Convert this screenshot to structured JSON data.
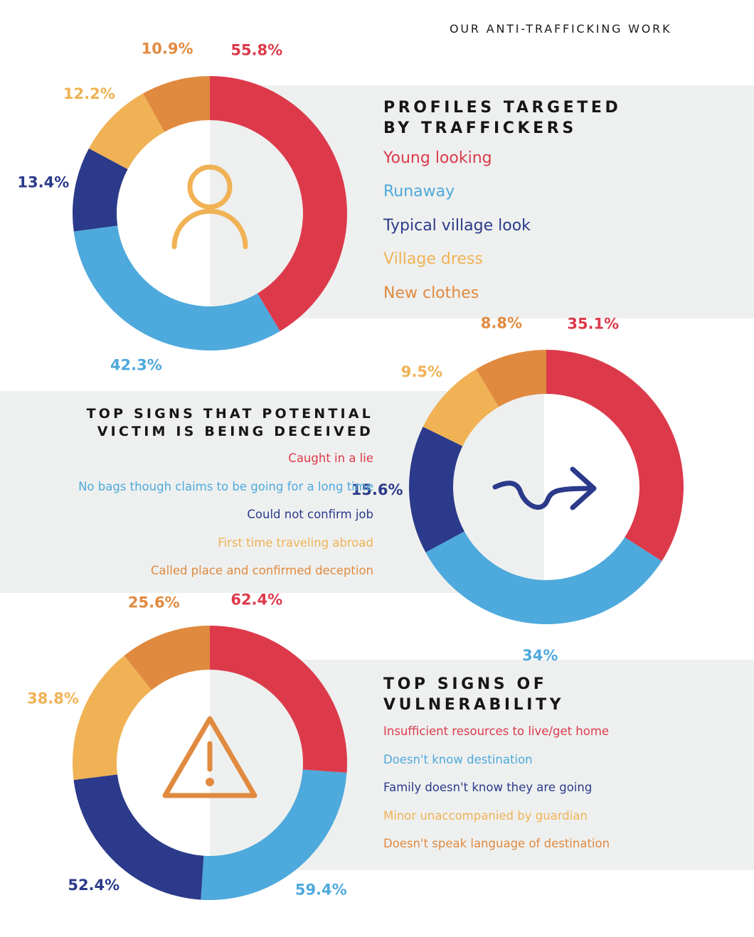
{
  "header": {
    "title": "OUR ANTI-TRAFFICKING WORK"
  },
  "colors": {
    "red": "#dc3a4b",
    "light_blue": "#4ea9dc",
    "navy": "#2b3a8a",
    "yellow": "#f0b255",
    "orange": "#e08a40",
    "band": "#eef0ef",
    "text": "#161616"
  },
  "icons": [
    "person-icon",
    "winding-arrow-icon",
    "warning-icon"
  ],
  "chart_data": [
    {
      "type": "donut",
      "title": "PROFILES TARGETED BY TRAFFICKERS",
      "title_lines": [
        "PROFILES TARGETED",
        "BY TRAFFICKERS"
      ],
      "categories": [
        "Young looking",
        "Runaway",
        "Typical village look",
        "Village dress",
        "New clothes"
      ],
      "values": [
        55.8,
        42.3,
        13.4,
        12.2,
        10.9
      ],
      "labels": [
        "55.8%",
        "42.3%",
        "13.4%",
        "12.2%",
        "10.9%"
      ],
      "colors": [
        "#dc3a4b",
        "#4ea9dc",
        "#2b3a8a",
        "#f0b255",
        "#e08a40"
      ],
      "label_colors": [
        "#dc3a4b",
        "#4ea9dc",
        "#2b3a8a",
        "#f0b255",
        "#e08a40"
      ]
    },
    {
      "type": "donut",
      "title": "TOP SIGNS THAT POTENTIAL VICTIM IS BEING DECEIVED",
      "title_lines": [
        "TOP SIGNS THAT POTENTIAL",
        "VICTIM IS BEING DECEIVED"
      ],
      "categories": [
        "Caught in a lie",
        "No bags though claims to be going for a long time",
        "Could not confirm job",
        "First time traveling abroad",
        "Called place and confirmed deception"
      ],
      "values": [
        35.1,
        34,
        15.6,
        9.5,
        8.8
      ],
      "labels": [
        "35.1%",
        "34%",
        "15.6%",
        "9.5%",
        "8.8%"
      ],
      "colors": [
        "#dc3a4b",
        "#4ea9dc",
        "#2b3a8a",
        "#f0b255",
        "#e08a40"
      ],
      "label_colors": [
        "#dc3a4b",
        "#4ea9dc",
        "#2b3a8a",
        "#f0b255",
        "#e08a40"
      ]
    },
    {
      "type": "donut",
      "title": "TOP SIGNS OF VULNERABILITY",
      "title_lines": [
        "TOP SIGNS OF",
        "VULNERABILITY"
      ],
      "categories": [
        "Insufficient resources to live/get home",
        "Doesn't know destination",
        "Family doesn't know they are going",
        "Minor unaccompanied by guardian",
        "Doesn't speak language of destination"
      ],
      "values": [
        62.4,
        59.4,
        52.4,
        38.8,
        25.6
      ],
      "labels": [
        "62.4%",
        "59.4%",
        "52.4%",
        "38.8%",
        "25.6%"
      ],
      "colors": [
        "#dc3a4b",
        "#4ea9dc",
        "#2b3a8a",
        "#f0b255",
        "#e08a40"
      ],
      "label_colors": [
        "#dc3a4b",
        "#4ea9dc",
        "#2b3a8a",
        "#f0b255",
        "#e08a40"
      ]
    }
  ]
}
